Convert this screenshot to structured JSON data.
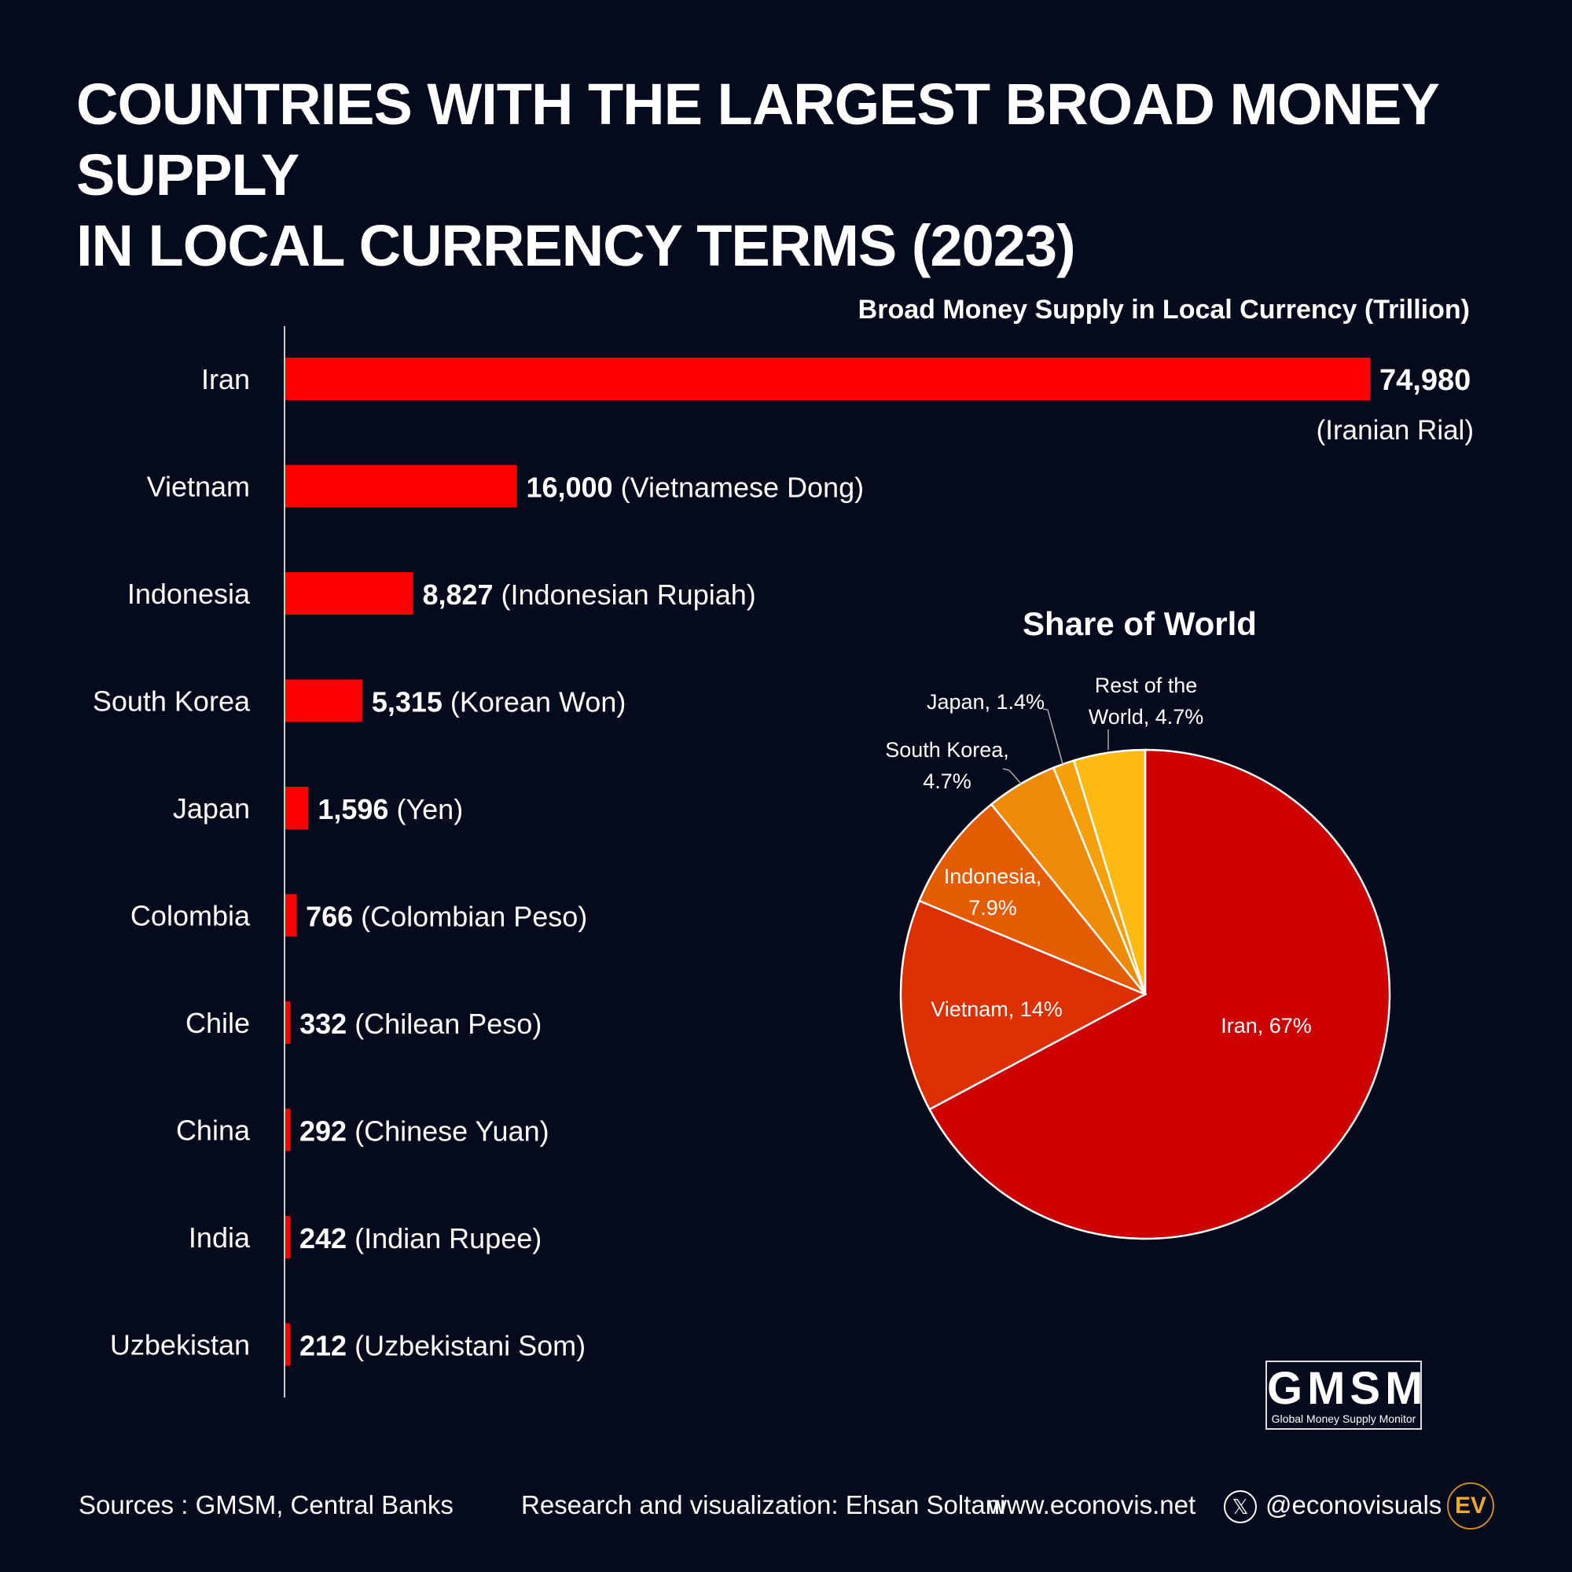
{
  "title_lines": [
    "COUNTRIES WITH THE LARGEST BROAD MONEY SUPPLY",
    "IN LOCAL CURRENCY TERMS (2023)"
  ],
  "chart_data": [
    {
      "type": "bar",
      "orientation": "horizontal",
      "title": "Broad Money Supply in Local Currency (Trillion)",
      "categories": [
        "Iran",
        "Vietnam",
        "Indonesia",
        "South Korea",
        "Japan",
        "Colombia",
        "Chile",
        "China",
        "India",
        "Uzbekistan"
      ],
      "values": [
        74980,
        16000,
        8827,
        5315,
        1596,
        766,
        332,
        292,
        242,
        212
      ],
      "value_labels": [
        "74,980",
        "16,000",
        "8,827",
        "5,315",
        "1,596",
        "766",
        "332",
        "292",
        "242",
        "212"
      ],
      "currencies": [
        "(Iranian Rial)",
        "(Vietnamese Dong)",
        "(Indonesian Rupiah)",
        "(Korean Won)",
        "(Yen)",
        "(Colombian Peso)",
        "(Chilean Peso)",
        "(Chinese Yuan)",
        "(Indian Rupee)",
        "(Uzbekistani Som)"
      ],
      "bar_color": "#ff0000"
    },
    {
      "type": "pie",
      "title": "Share of World",
      "slices": [
        {
          "label": "Iran, 67%",
          "value": 67,
          "color": "#cc0000"
        },
        {
          "label": "Vietnam, 14%",
          "value": 14,
          "color": "#dc3000"
        },
        {
          "label": "Indonesia, 7.9%",
          "value": 7.9,
          "color": "#e55c00"
        },
        {
          "label": "South Korea, 4.7%",
          "value": 4.7,
          "color": "#ef8a06"
        },
        {
          "label": "Japan, 1.4%",
          "value": 1.4,
          "color": "#f5a00a"
        },
        {
          "label": "Rest of the World, 4.7%",
          "value": 4.7,
          "color": "#fdbb12"
        }
      ]
    }
  ],
  "footer": {
    "sources": "Sources : GMSM, Central Banks",
    "credit": "Research and visualization: Ehsan Soltani",
    "website": "www.econovis.net",
    "handle": "@econovisuals",
    "x_icon": "x-logo-icon",
    "ev_logo": "EV"
  },
  "gmsm_logo": {
    "big": "GMSM",
    "small": "Global Money Supply Monitor"
  }
}
